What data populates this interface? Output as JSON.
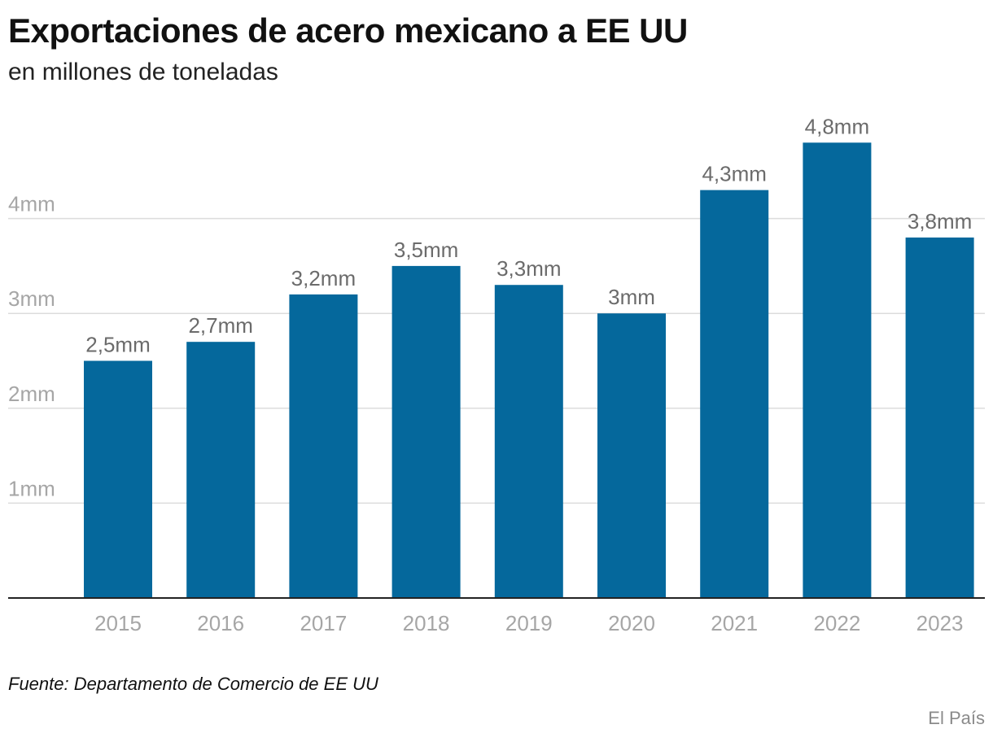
{
  "title": "Exportaciones de acero mexicano a EE UU",
  "subtitle": "en millones de toneladas",
  "source": "Fuente: Departamento de Comercio de EE UU",
  "credit": "El País",
  "colors": {
    "bar": "#05689c",
    "grid": "#dcdcdc",
    "baseline": "#222222",
    "tick_label": "#a6a6a6",
    "data_label": "#6b6b6b",
    "title": "#111111"
  },
  "chart_data": {
    "type": "bar",
    "categories": [
      "2015",
      "2016",
      "2017",
      "2018",
      "2019",
      "2020",
      "2021",
      "2022",
      "2023"
    ],
    "values": [
      2.5,
      2.7,
      3.2,
      3.5,
      3.3,
      3.0,
      4.3,
      4.8,
      3.8
    ],
    "data_labels": [
      "2,5mm",
      "2,7mm",
      "3,2mm",
      "3,5mm",
      "3,3mm",
      "3mm",
      "4,3mm",
      "4,8mm",
      "3,8mm"
    ],
    "yticks": [
      1,
      2,
      3,
      4
    ],
    "ytick_labels": [
      "1mm",
      "2mm",
      "3mm",
      "4mm"
    ],
    "ylim": [
      0,
      5
    ],
    "xlabel": "",
    "ylabel": "",
    "grid": true,
    "legend": "none"
  }
}
